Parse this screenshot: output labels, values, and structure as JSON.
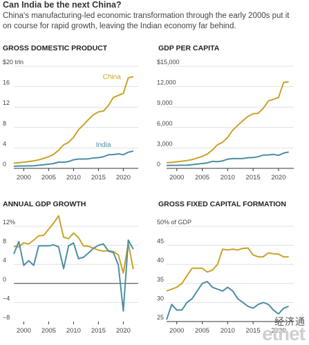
{
  "header": {
    "title": "Can India be the next China?",
    "subtitle": "China's manufacturing-led economic transformation through the early 2000s put it on course for rapid growth, leaving the Indian economy far behind."
  },
  "colors": {
    "china": "#c9a227",
    "india": "#4a8ea3",
    "axis": "#333333",
    "grid": "#d9d9d9",
    "text": "#444444"
  },
  "watermark": {
    "chinese": "经济通",
    "brand": "etnet"
  },
  "chart_data": [
    {
      "type": "line",
      "title": "GROSS DOMESTIC PRODUCT",
      "ylim": [
        0,
        20
      ],
      "yticks": [
        0,
        4,
        8,
        12,
        16,
        20
      ],
      "ytick_labels": [
        "0",
        "4",
        "8",
        "12",
        "16",
        "$20 trln"
      ],
      "xlim": [
        1998,
        2023
      ],
      "xticks": [
        2000,
        2005,
        2010,
        2015,
        2020
      ],
      "series_labels": [
        {
          "name": "China",
          "x": 2019.5,
          "y": 17.5
        },
        {
          "name": "India",
          "x": 2017.5,
          "y": 4.2
        }
      ],
      "series": [
        {
          "name": "China",
          "x": [
            1998,
            1999,
            2000,
            2001,
            2002,
            2003,
            2004,
            2005,
            2006,
            2007,
            2008,
            2009,
            2010,
            2011,
            2012,
            2013,
            2014,
            2015,
            2016,
            2017,
            2018,
            2019,
            2020,
            2021,
            2022
          ],
          "values": [
            1.03,
            1.09,
            1.21,
            1.34,
            1.47,
            1.66,
            1.96,
            2.29,
            2.75,
            3.55,
            4.59,
            5.1,
            6.09,
            7.55,
            8.53,
            9.57,
            10.48,
            11.06,
            11.23,
            12.31,
            13.89,
            14.28,
            14.69,
            17.73,
            17.96
          ]
        },
        {
          "name": "India",
          "x": [
            1998,
            1999,
            2000,
            2001,
            2002,
            2003,
            2004,
            2005,
            2006,
            2007,
            2008,
            2009,
            2010,
            2011,
            2012,
            2013,
            2014,
            2015,
            2016,
            2017,
            2018,
            2019,
            2020,
            2021,
            2022
          ],
          "values": [
            0.42,
            0.46,
            0.47,
            0.49,
            0.51,
            0.61,
            0.71,
            0.82,
            0.94,
            1.22,
            1.2,
            1.34,
            1.68,
            1.82,
            1.83,
            1.86,
            2.04,
            2.1,
            2.29,
            2.65,
            2.7,
            2.84,
            2.67,
            3.15,
            3.39
          ]
        }
      ]
    },
    {
      "type": "line",
      "title": "GDP PER CAPITA",
      "ylim": [
        0,
        15000
      ],
      "yticks": [
        0,
        3000,
        6000,
        9000,
        12000,
        15000
      ],
      "ytick_labels": [
        "0",
        "3,000",
        "6,000",
        "9,000",
        "12,000",
        "$15,000"
      ],
      "xlim": [
        1998,
        2023
      ],
      "xticks": [
        2000,
        2005,
        2010,
        2015,
        2020
      ],
      "series": [
        {
          "name": "China",
          "x": [
            1998,
            1999,
            2000,
            2001,
            2002,
            2003,
            2004,
            2005,
            2006,
            2007,
            2008,
            2009,
            2010,
            2011,
            2012,
            2013,
            2014,
            2015,
            2016,
            2017,
            2018,
            2019,
            2020,
            2021,
            2022
          ],
          "values": [
            829,
            873,
            959,
            1053,
            1149,
            1289,
            1509,
            1753,
            2099,
            2694,
            3468,
            3832,
            4550,
            5614,
            6301,
            7020,
            7636,
            8016,
            8094,
            8817,
            9905,
            10144,
            10409,
            12618,
            12720
          ]
        },
        {
          "name": "India",
          "x": [
            1998,
            1999,
            2000,
            2001,
            2002,
            2003,
            2004,
            2005,
            2006,
            2007,
            2008,
            2009,
            2010,
            2011,
            2012,
            2013,
            2014,
            2015,
            2016,
            2017,
            2018,
            2019,
            2020,
            2021,
            2022
          ],
          "values": [
            413,
            441,
            443,
            452,
            471,
            546,
            624,
            710,
            802,
            1022,
            994,
            1090,
            1351,
            1450,
            1434,
            1438,
            1560,
            1590,
            1714,
            1958,
            1974,
            2050,
            1913,
            2238,
            2389
          ]
        }
      ]
    },
    {
      "type": "line",
      "title": "ANNUAL GDP GROWTH",
      "ylim": [
        -8,
        12
      ],
      "yticks": [
        -8,
        -4,
        0,
        4,
        8,
        12
      ],
      "ytick_labels": [
        "−8",
        "−4",
        "0",
        "4",
        "8",
        "12%"
      ],
      "xlim": [
        1998,
        2023
      ],
      "xticks": [
        2000,
        2005,
        2010,
        2015,
        2020
      ],
      "series": [
        {
          "name": "China",
          "x": [
            1998,
            1999,
            2000,
            2001,
            2002,
            2003,
            2004,
            2005,
            2006,
            2007,
            2008,
            2009,
            2010,
            2011,
            2012,
            2013,
            2014,
            2015,
            2016,
            2017,
            2018,
            2019,
            2020,
            2021,
            2022
          ],
          "values": [
            7.8,
            7.7,
            8.5,
            8.3,
            9.1,
            10.0,
            10.1,
            11.4,
            12.7,
            14.2,
            9.7,
            9.4,
            10.6,
            9.6,
            7.9,
            7.8,
            7.4,
            7.0,
            6.8,
            6.9,
            6.7,
            6.0,
            2.2,
            8.4,
            3.0
          ]
        },
        {
          "name": "India",
          "x": [
            1998,
            1999,
            2000,
            2001,
            2002,
            2003,
            2004,
            2005,
            2006,
            2007,
            2008,
            2009,
            2010,
            2011,
            2012,
            2013,
            2014,
            2015,
            2016,
            2017,
            2018,
            2019,
            2020,
            2021,
            2022
          ],
          "values": [
            6.2,
            8.8,
            3.8,
            4.8,
            3.8,
            7.9,
            7.9,
            7.9,
            8.1,
            7.7,
            3.1,
            7.9,
            8.5,
            5.2,
            5.5,
            6.4,
            7.4,
            8.0,
            8.3,
            6.8,
            6.5,
            3.9,
            -5.8,
            9.1,
            7.2
          ]
        }
      ]
    },
    {
      "type": "line",
      "title": "GROSS FIXED CAPITAL FORMATION",
      "ylim": [
        25,
        50
      ],
      "yticks": [
        25,
        30,
        35,
        40,
        45,
        50
      ],
      "ytick_labels": [
        "25",
        "30",
        "35",
        "40",
        "45",
        "50% of GDP"
      ],
      "xlim": [
        1998,
        2023
      ],
      "xticks": [
        2000,
        2005,
        2010,
        2015,
        2020
      ],
      "series": [
        {
          "name": "China",
          "x": [
            1998,
            1999,
            2000,
            2001,
            2002,
            2003,
            2004,
            2005,
            2006,
            2007,
            2008,
            2009,
            2010,
            2011,
            2012,
            2013,
            2014,
            2015,
            2016,
            2017,
            2018,
            2019,
            2020,
            2021,
            2022
          ],
          "values": [
            33,
            33.5,
            34,
            35,
            37,
            39,
            39,
            39,
            38,
            38.5,
            40,
            44,
            43.8,
            44,
            43.8,
            44.2,
            44.3,
            42.5,
            42,
            42,
            43,
            42.8,
            42.7,
            42,
            42
          ]
        },
        {
          "name": "India",
          "x": [
            1998,
            1999,
            2000,
            2001,
            2002,
            2003,
            2004,
            2005,
            2006,
            2007,
            2008,
            2009,
            2010,
            2011,
            2012,
            2013,
            2014,
            2015,
            2016,
            2017,
            2018,
            2019,
            2020,
            2021,
            2022
          ],
          "values": [
            25.5,
            29.5,
            28,
            28,
            30,
            31,
            33,
            35,
            35.5,
            34,
            33.5,
            33,
            34,
            33,
            31,
            30,
            29,
            28.5,
            29.5,
            30,
            29.5,
            28,
            27,
            28.5,
            29
          ]
        }
      ]
    }
  ]
}
